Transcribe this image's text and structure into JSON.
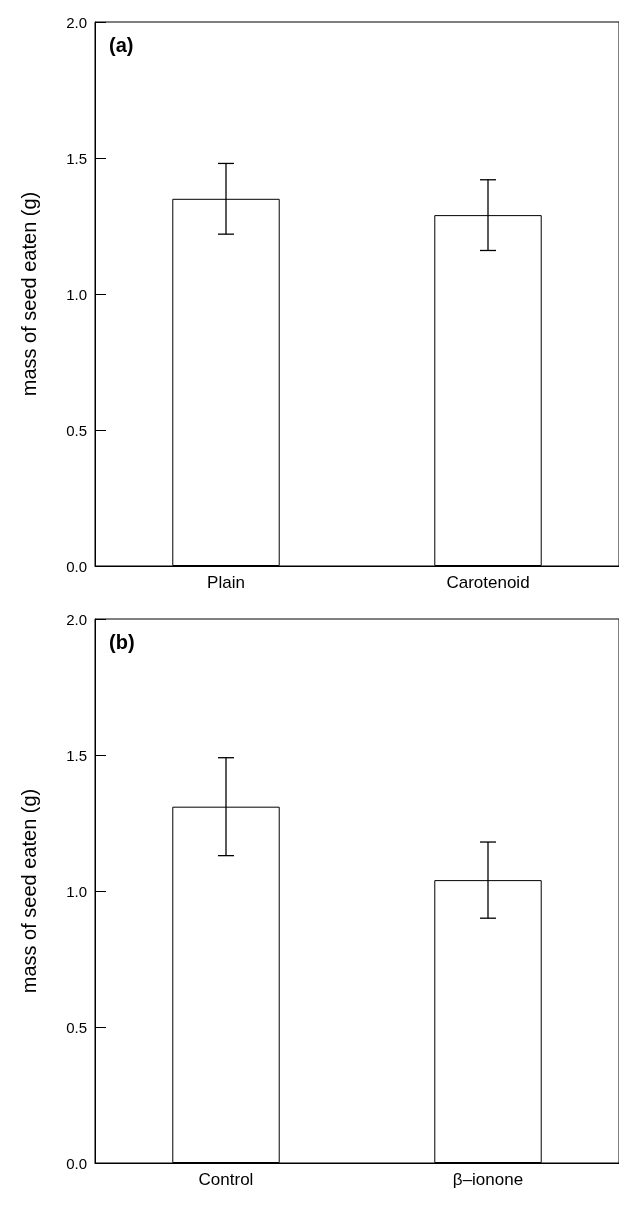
{
  "chart_data": [
    {
      "type": "bar",
      "title": "(a)",
      "ylabel": "mass of seed eaten (g)",
      "categories": [
        "Plain",
        "Carotenoid"
      ],
      "series": [
        {
          "color": "#ffffff",
          "values": [
            1.35,
            1.29
          ],
          "errors": [
            0.13,
            0.13
          ]
        }
      ],
      "ylim": [
        0,
        2
      ],
      "yticks": [
        {
          "value": 0,
          "label": "0.0"
        },
        {
          "value": 0.5,
          "label": "0.5"
        },
        {
          "value": 1,
          "label": "1.0"
        },
        {
          "value": 1.5,
          "label": "1.5"
        },
        {
          "value": 2,
          "label": "2.0"
        }
      ]
    },
    {
      "type": "bar",
      "title": "(b)",
      "ylabel": "mass of seed eaten (g)",
      "categories": [
        "Control",
        "β–ionone"
      ],
      "series": [
        {
          "color": "#ffffff",
          "values": [
            1.31,
            1.04
          ],
          "errors": [
            0.18,
            0.14
          ]
        }
      ],
      "ylim": [
        0,
        2
      ],
      "yticks": [
        {
          "value": 0,
          "label": "0.0"
        },
        {
          "value": 0.5,
          "label": "0.5"
        },
        {
          "value": 1,
          "label": "1.0"
        },
        {
          "value": 1.5,
          "label": "1.5"
        },
        {
          "value": 2,
          "label": "2.0"
        }
      ]
    }
  ]
}
